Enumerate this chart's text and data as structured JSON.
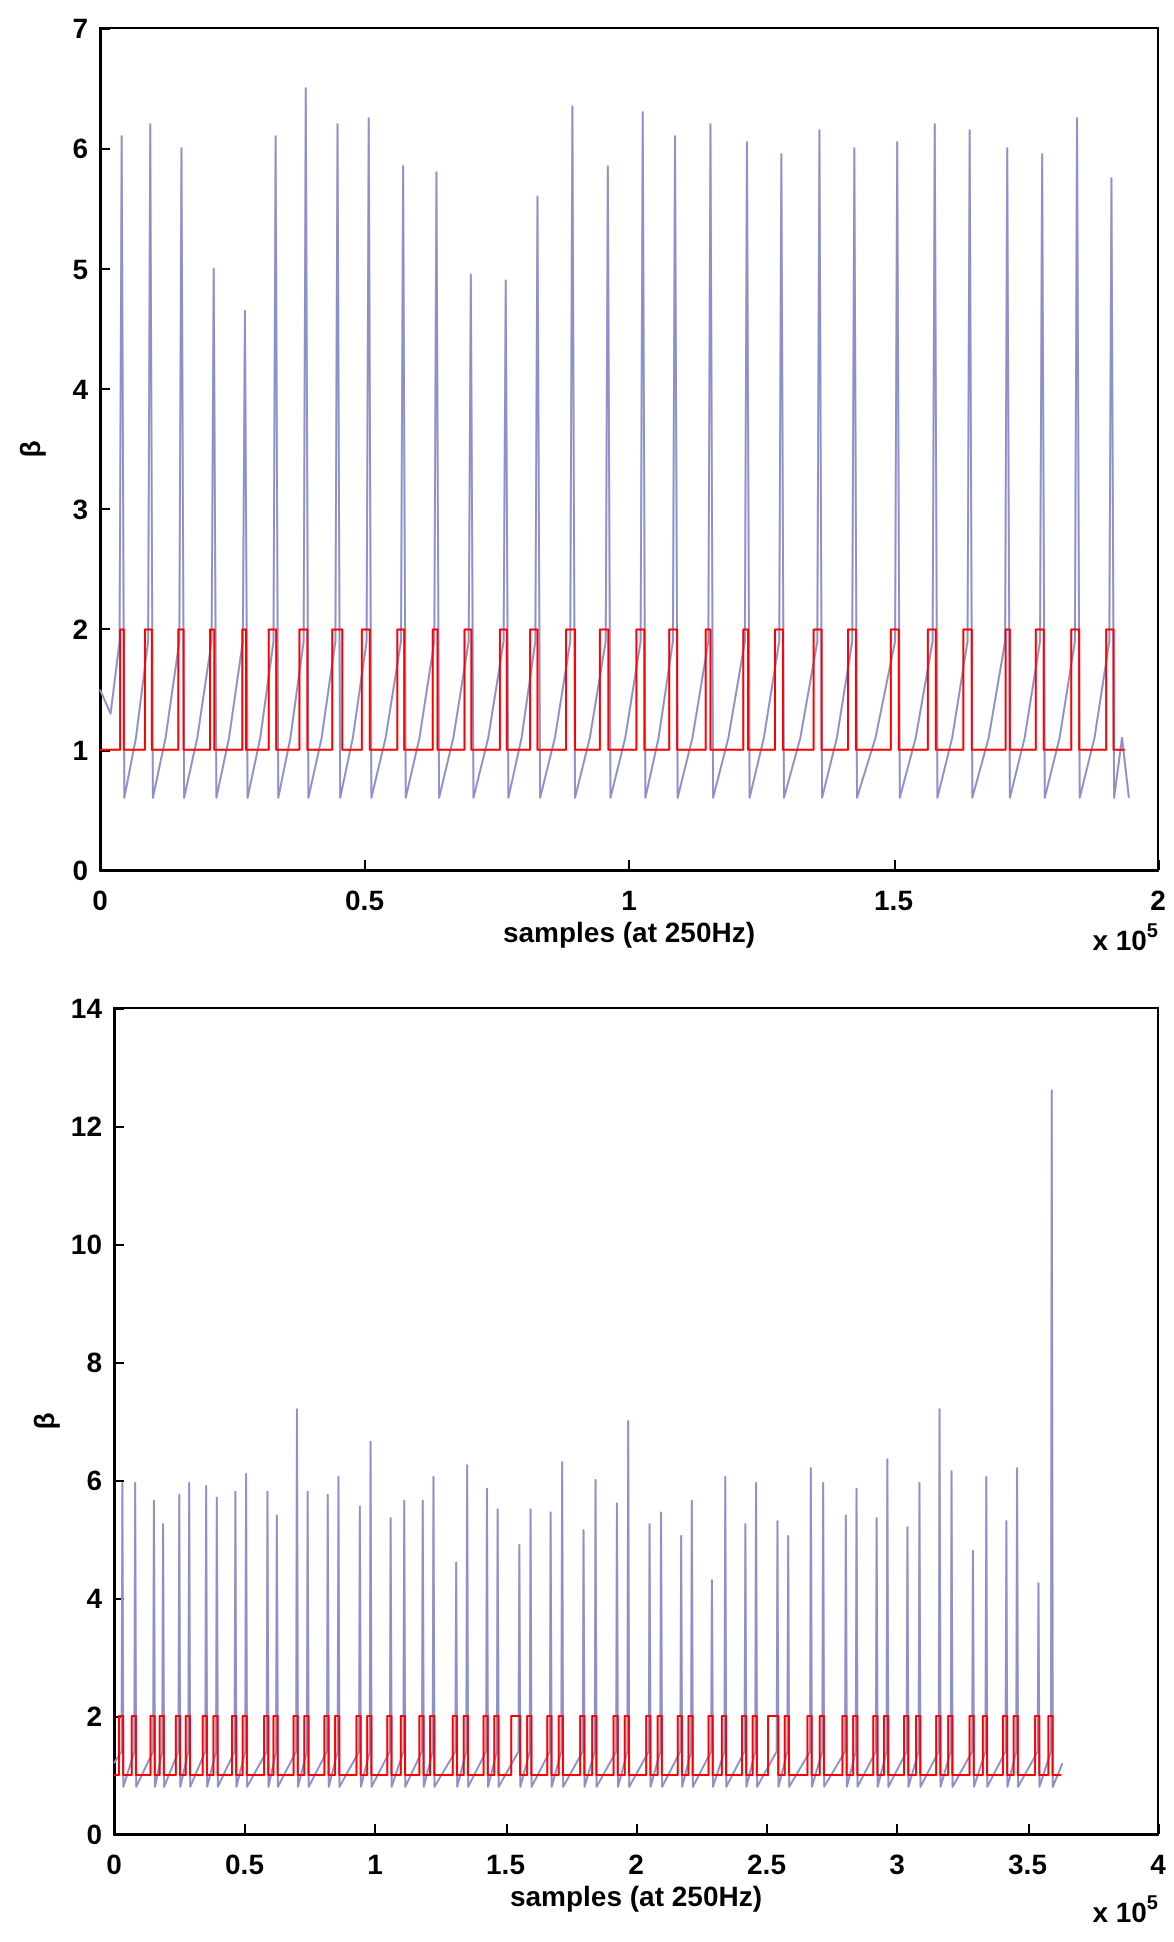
{
  "chart_data": [
    {
      "type": "line",
      "xlabel": "samples (at 250Hz)",
      "ylabel": "β",
      "annotations": [
        "x 10$^{5}$"
      ],
      "xlim": [
        0,
        2
      ],
      "xticks": [
        0,
        0.5,
        1,
        1.5,
        2
      ],
      "ylim": [
        0,
        7
      ],
      "yticks": [
        0,
        1,
        2,
        3,
        4,
        5,
        6,
        7
      ],
      "series": [
        {
          "color": "#8e90c9",
          "x": [
            0,
            0.02,
            0.037,
            0.041,
            0.046,
            0.068,
            0.091,
            0.095,
            0.1,
            0.124,
            0.15,
            0.154,
            0.159,
            0.184,
            0.211,
            0.215,
            0.22,
            0.244,
            0.27,
            0.274,
            0.279,
            0.303,
            0.328,
            0.332,
            0.337,
            0.36,
            0.385,
            0.389,
            0.394,
            0.419,
            0.445,
            0.449,
            0.454,
            0.478,
            0.504,
            0.508,
            0.513,
            0.54,
            0.569,
            0.573,
            0.578,
            0.604,
            0.632,
            0.636,
            0.641,
            0.668,
            0.697,
            0.701,
            0.706,
            0.734,
            0.763,
            0.767,
            0.772,
            0.797,
            0.823,
            0.827,
            0.832,
            0.86,
            0.889,
            0.893,
            0.898,
            0.926,
            0.956,
            0.96,
            0.965,
            0.993,
            1.022,
            1.026,
            1.031,
            1.056,
            1.083,
            1.087,
            1.092,
            1.12,
            1.15,
            1.154,
            1.159,
            1.188,
            1.219,
            1.223,
            1.228,
            1.255,
            1.284,
            1.288,
            1.293,
            1.324,
            1.356,
            1.36,
            1.365,
            1.393,
            1.422,
            1.426,
            1.431,
            1.466,
            1.503,
            1.507,
            1.512,
            1.542,
            1.574,
            1.578,
            1.583,
            1.611,
            1.64,
            1.644,
            1.649,
            1.68,
            1.711,
            1.715,
            1.72,
            1.748,
            1.777,
            1.781,
            1.786,
            1.814,
            1.843,
            1.847,
            1.852,
            1.88,
            1.908,
            1.912,
            1.917,
            1.932,
            1.945
          ],
          "values": [
            1.5,
            1.3,
            1.9,
            6.1,
            0.6,
            1.1,
            1.9,
            6.2,
            0.6,
            1.1,
            1.9,
            6.0,
            0.6,
            1.1,
            1.9,
            5.0,
            0.6,
            1.1,
            1.9,
            4.65,
            0.6,
            1.1,
            1.9,
            6.1,
            0.6,
            1.1,
            1.9,
            6.5,
            0.6,
            1.1,
            1.9,
            6.2,
            0.6,
            1.1,
            1.9,
            6.25,
            0.6,
            1.1,
            1.9,
            5.85,
            0.6,
            1.1,
            1.9,
            5.8,
            0.6,
            1.1,
            1.9,
            4.95,
            0.6,
            1.1,
            1.9,
            4.9,
            0.6,
            1.1,
            1.9,
            5.6,
            0.6,
            1.1,
            1.9,
            6.35,
            0.6,
            1.1,
            1.9,
            5.85,
            0.6,
            1.1,
            1.9,
            6.3,
            0.6,
            1.1,
            1.9,
            6.1,
            0.6,
            1.1,
            1.9,
            6.2,
            0.6,
            1.1,
            1.9,
            6.05,
            0.6,
            1.1,
            1.9,
            5.95,
            0.6,
            1.1,
            1.9,
            6.15,
            0.6,
            1.1,
            1.9,
            6.0,
            0.6,
            1.1,
            1.9,
            6.05,
            0.6,
            1.1,
            1.9,
            6.2,
            0.6,
            1.1,
            1.9,
            6.15,
            0.6,
            1.1,
            1.9,
            6.0,
            0.6,
            1.1,
            1.9,
            5.95,
            0.6,
            1.1,
            1.9,
            6.25,
            0.6,
            1.1,
            1.9,
            5.75,
            0.6,
            1.1,
            0.6
          ]
        },
        {
          "type": "step",
          "color": "#ff0000",
          "x": [
            0,
            0.038,
            0.045,
            0.085,
            0.098,
            0.148,
            0.158,
            0.208,
            0.216,
            0.269,
            0.276,
            0.319,
            0.333,
            0.377,
            0.392,
            0.439,
            0.458,
            0.495,
            0.51,
            0.562,
            0.575,
            0.629,
            0.638,
            0.689,
            0.702,
            0.756,
            0.769,
            0.813,
            0.827,
            0.881,
            0.898,
            0.945,
            0.961,
            1.014,
            1.029,
            1.076,
            1.091,
            1.145,
            1.154,
            1.216,
            1.225,
            1.276,
            1.291,
            1.349,
            1.364,
            1.414,
            1.429,
            1.495,
            1.51,
            1.565,
            1.58,
            1.632,
            1.648,
            1.712,
            1.72,
            1.769,
            1.784,
            1.836,
            1.851,
            1.902,
            1.916,
            1.937
          ],
          "values": [
            1,
            2,
            1,
            2,
            1,
            2,
            1,
            2,
            1,
            2,
            1,
            2,
            1,
            2,
            1,
            2,
            1,
            2,
            1,
            2,
            1,
            2,
            1,
            2,
            1,
            2,
            1,
            2,
            1,
            2,
            1,
            2,
            1,
            2,
            1,
            2,
            1,
            2,
            1,
            2,
            1,
            2,
            1,
            2,
            1,
            2,
            1,
            2,
            1,
            2,
            1,
            2,
            1,
            2,
            1,
            2,
            1,
            2,
            1,
            2,
            1,
            1
          ]
        }
      ]
    },
    {
      "type": "line",
      "xlabel": "samples (at 250Hz)",
      "ylabel": "β",
      "annotations": [
        "x 10$^{5}$"
      ],
      "xlim": [
        0,
        4
      ],
      "xticks": [
        0,
        0.5,
        1,
        1.5,
        2,
        2.5,
        3,
        3.5,
        4
      ],
      "ylim": [
        0,
        14
      ],
      "yticks": [
        0,
        2,
        4,
        6,
        8,
        10,
        12,
        14
      ],
      "series": [
        {
          "color": "#8e90c9",
          "x": [
            0,
            0.029,
            0.032,
            0.036,
            0.078,
            0.081,
            0.085,
            0.15,
            0.153,
            0.157,
            0.185,
            0.188,
            0.192,
            0.247,
            0.25,
            0.254,
            0.285,
            0.288,
            0.292,
            0.35,
            0.353,
            0.357,
            0.391,
            0.394,
            0.398,
            0.462,
            0.465,
            0.469,
            0.503,
            0.506,
            0.51,
            0.585,
            0.588,
            0.592,
            0.621,
            0.624,
            0.628,
            0.698,
            0.701,
            0.705,
            0.739,
            0.742,
            0.746,
            0.816,
            0.819,
            0.823,
            0.857,
            0.86,
            0.864,
            0.939,
            0.942,
            0.946,
            0.98,
            0.983,
            0.987,
            1.057,
            1.06,
            1.064,
            1.109,
            1.112,
            1.116,
            1.18,
            1.183,
            1.187,
            1.221,
            1.224,
            1.228,
            1.308,
            1.311,
            1.315,
            1.35,
            1.353,
            1.357,
            1.426,
            1.429,
            1.433,
            1.467,
            1.47,
            1.474,
            1.55,
            1.553,
            1.557,
            1.593,
            1.596,
            1.6,
            1.67,
            1.673,
            1.677,
            1.714,
            1.717,
            1.721,
            1.796,
            1.799,
            1.803,
            1.842,
            1.845,
            1.849,
            1.924,
            1.927,
            1.931,
            1.967,
            1.97,
            1.974,
            2.049,
            2.052,
            2.056,
            2.093,
            2.096,
            2.1,
            2.17,
            2.173,
            2.177,
            2.211,
            2.214,
            2.218,
            2.288,
            2.291,
            2.295,
            2.339,
            2.342,
            2.346,
            2.416,
            2.419,
            2.423,
            2.457,
            2.46,
            2.464,
            2.539,
            2.542,
            2.546,
            2.58,
            2.583,
            2.587,
            2.667,
            2.67,
            2.674,
            2.714,
            2.717,
            2.721,
            2.801,
            2.804,
            2.808,
            2.842,
            2.845,
            2.849,
            2.919,
            2.922,
            2.926,
            2.96,
            2.963,
            2.967,
            3.037,
            3.04,
            3.044,
            3.083,
            3.086,
            3.09,
            3.16,
            3.163,
            3.167,
            3.206,
            3.209,
            3.213,
            3.288,
            3.291,
            3.295,
            3.339,
            3.342,
            3.346,
            3.416,
            3.419,
            3.423,
            3.457,
            3.46,
            3.464,
            3.539,
            3.542,
            3.546,
            3.59,
            3.593,
            3.597,
            3.634
          ],
          "values": [
            1.2,
            1.4,
            5.95,
            0.8,
            1.4,
            5.95,
            0.8,
            1.4,
            5.65,
            0.8,
            1.4,
            5.25,
            0.8,
            1.4,
            5.75,
            0.8,
            1.4,
            5.95,
            0.8,
            1.4,
            5.9,
            0.8,
            1.4,
            5.7,
            0.8,
            1.4,
            5.8,
            0.8,
            1.4,
            6.1,
            0.8,
            1.4,
            5.8,
            0.8,
            1.4,
            5.4,
            0.8,
            1.4,
            7.2,
            0.8,
            1.4,
            5.8,
            0.8,
            1.4,
            5.75,
            0.8,
            1.4,
            6.05,
            0.8,
            1.4,
            5.55,
            0.8,
            1.4,
            6.65,
            0.8,
            1.4,
            5.35,
            0.8,
            1.4,
            5.65,
            0.8,
            1.4,
            5.65,
            0.8,
            1.4,
            6.05,
            0.8,
            1.4,
            4.6,
            0.8,
            1.4,
            6.25,
            0.8,
            1.4,
            5.85,
            0.8,
            1.4,
            5.5,
            0.8,
            1.4,
            4.9,
            0.8,
            1.4,
            5.5,
            0.8,
            1.4,
            5.45,
            0.8,
            1.4,
            6.3,
            0.8,
            1.4,
            5.15,
            0.8,
            1.4,
            6.0,
            0.8,
            1.4,
            5.6,
            0.8,
            1.4,
            7.0,
            0.8,
            1.4,
            5.25,
            0.8,
            1.4,
            5.45,
            0.8,
            1.4,
            5.05,
            0.8,
            1.4,
            5.65,
            0.8,
            1.4,
            4.3,
            0.8,
            1.4,
            6.05,
            0.8,
            1.4,
            5.25,
            0.8,
            1.4,
            5.95,
            0.8,
            1.4,
            5.3,
            0.8,
            1.4,
            5.05,
            0.8,
            1.4,
            6.2,
            0.8,
            1.4,
            5.95,
            0.8,
            1.4,
            5.4,
            0.8,
            1.4,
            5.85,
            0.8,
            1.4,
            5.35,
            0.8,
            1.4,
            6.35,
            0.8,
            1.4,
            5.2,
            0.8,
            1.4,
            5.95,
            0.8,
            1.4,
            7.2,
            0.8,
            1.4,
            6.15,
            0.8,
            1.4,
            4.8,
            0.8,
            1.4,
            6.05,
            0.8,
            1.4,
            5.3,
            0.8,
            1.4,
            6.2,
            0.8,
            1.4,
            4.25,
            0.8,
            1.4,
            12.6,
            0.8,
            1.2
          ]
        },
        {
          "type": "step",
          "color": "#ff0000",
          "x": [
            0,
            0.019,
            0.035,
            0.068,
            0.084,
            0.14,
            0.156,
            0.175,
            0.191,
            0.237,
            0.253,
            0.275,
            0.291,
            0.34,
            0.356,
            0.381,
            0.397,
            0.452,
            0.468,
            0.493,
            0.509,
            0.575,
            0.591,
            0.611,
            0.627,
            0.688,
            0.704,
            0.729,
            0.745,
            0.806,
            0.822,
            0.847,
            0.863,
            0.929,
            0.945,
            0.97,
            0.986,
            1.047,
            1.063,
            1.099,
            1.115,
            1.17,
            1.186,
            1.211,
            1.227,
            1.298,
            1.314,
            1.34,
            1.356,
            1.416,
            1.432,
            1.457,
            1.473,
            1.522,
            1.556,
            1.583,
            1.599,
            1.66,
            1.676,
            1.704,
            1.72,
            1.786,
            1.802,
            1.832,
            1.848,
            1.914,
            1.93,
            1.957,
            1.973,
            2.039,
            2.055,
            2.083,
            2.099,
            2.16,
            2.176,
            2.201,
            2.217,
            2.278,
            2.294,
            2.329,
            2.345,
            2.406,
            2.422,
            2.447,
            2.463,
            2.506,
            2.545,
            2.57,
            2.586,
            2.657,
            2.673,
            2.704,
            2.72,
            2.791,
            2.807,
            2.832,
            2.848,
            2.909,
            2.925,
            2.95,
            2.966,
            3.027,
            3.043,
            3.073,
            3.089,
            3.15,
            3.166,
            3.196,
            3.212,
            3.278,
            3.294,
            3.329,
            3.345,
            3.406,
            3.422,
            3.447,
            3.463,
            3.529,
            3.545,
            3.58,
            3.596,
            3.629
          ],
          "values": [
            1,
            2,
            1,
            2,
            1,
            2,
            1,
            2,
            1,
            2,
            1,
            2,
            1,
            2,
            1,
            2,
            1,
            2,
            1,
            2,
            1,
            2,
            1,
            2,
            1,
            2,
            1,
            2,
            1,
            2,
            1,
            2,
            1,
            2,
            1,
            2,
            1,
            2,
            1,
            2,
            1,
            2,
            1,
            2,
            1,
            2,
            1,
            2,
            1,
            2,
            1,
            2,
            1,
            2,
            1,
            2,
            1,
            2,
            1,
            2,
            1,
            2,
            1,
            2,
            1,
            2,
            1,
            2,
            1,
            2,
            1,
            2,
            1,
            2,
            1,
            2,
            1,
            2,
            1,
            2,
            1,
            2,
            1,
            2,
            1,
            2,
            1,
            2,
            1,
            2,
            1,
            2,
            1,
            2,
            1,
            2,
            1,
            2,
            1,
            2,
            1,
            2,
            1,
            2,
            1,
            2,
            1,
            2,
            1,
            2,
            1,
            2,
            1,
            2,
            1,
            2,
            1,
            2,
            1,
            2,
            1,
            1
          ]
        }
      ]
    }
  ]
}
